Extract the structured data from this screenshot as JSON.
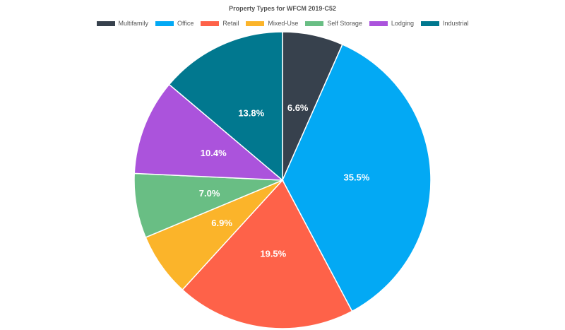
{
  "chart_data": {
    "type": "pie",
    "title": "Property Types for WFCM 2019-C52",
    "legend_position": "top",
    "slices": [
      {
        "name": "Multifamily",
        "value": 6.6,
        "label": "6.6%",
        "color": "#37414d"
      },
      {
        "name": "Office",
        "value": 35.5,
        "label": "35.5%",
        "color": "#03a9f4"
      },
      {
        "name": "Retail",
        "value": 19.5,
        "label": "19.5%",
        "color": "#fe6249"
      },
      {
        "name": "Mixed-Use",
        "value": 6.9,
        "label": "6.9%",
        "color": "#fbb42a"
      },
      {
        "name": "Self Storage",
        "value": 7.0,
        "label": "7.0%",
        "color": "#69be84"
      },
      {
        "name": "Lodging",
        "value": 10.4,
        "label": "10.4%",
        "color": "#ab53dc"
      },
      {
        "name": "Industrial",
        "value": 13.8,
        "label": "13.8%",
        "color": "#01788f"
      }
    ]
  }
}
